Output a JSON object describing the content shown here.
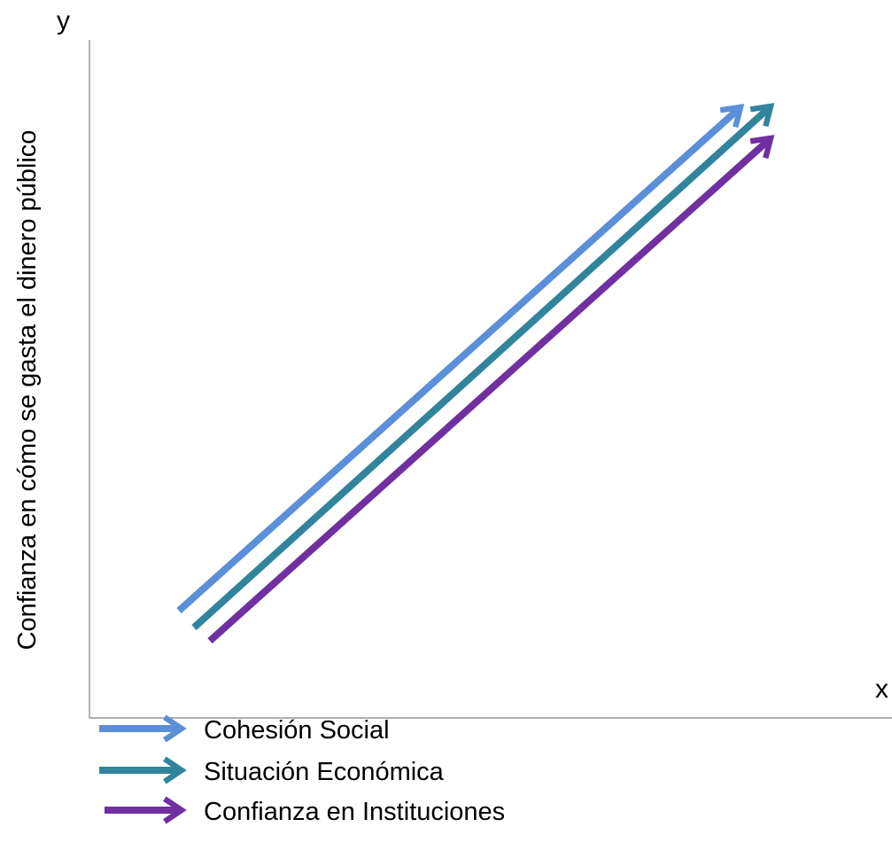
{
  "axes": {
    "y_letter": "y",
    "x_letter": "x",
    "y_title": "Confianza en cómo se gasta el dinero público"
  },
  "legend": [
    {
      "label": "Cohesión Social",
      "color": "#5b8fd9"
    },
    {
      "label": "Situación Económica",
      "color": "#31849b"
    },
    {
      "label": "Confianza en Instituciones",
      "color": "#7030a0"
    }
  ]
}
